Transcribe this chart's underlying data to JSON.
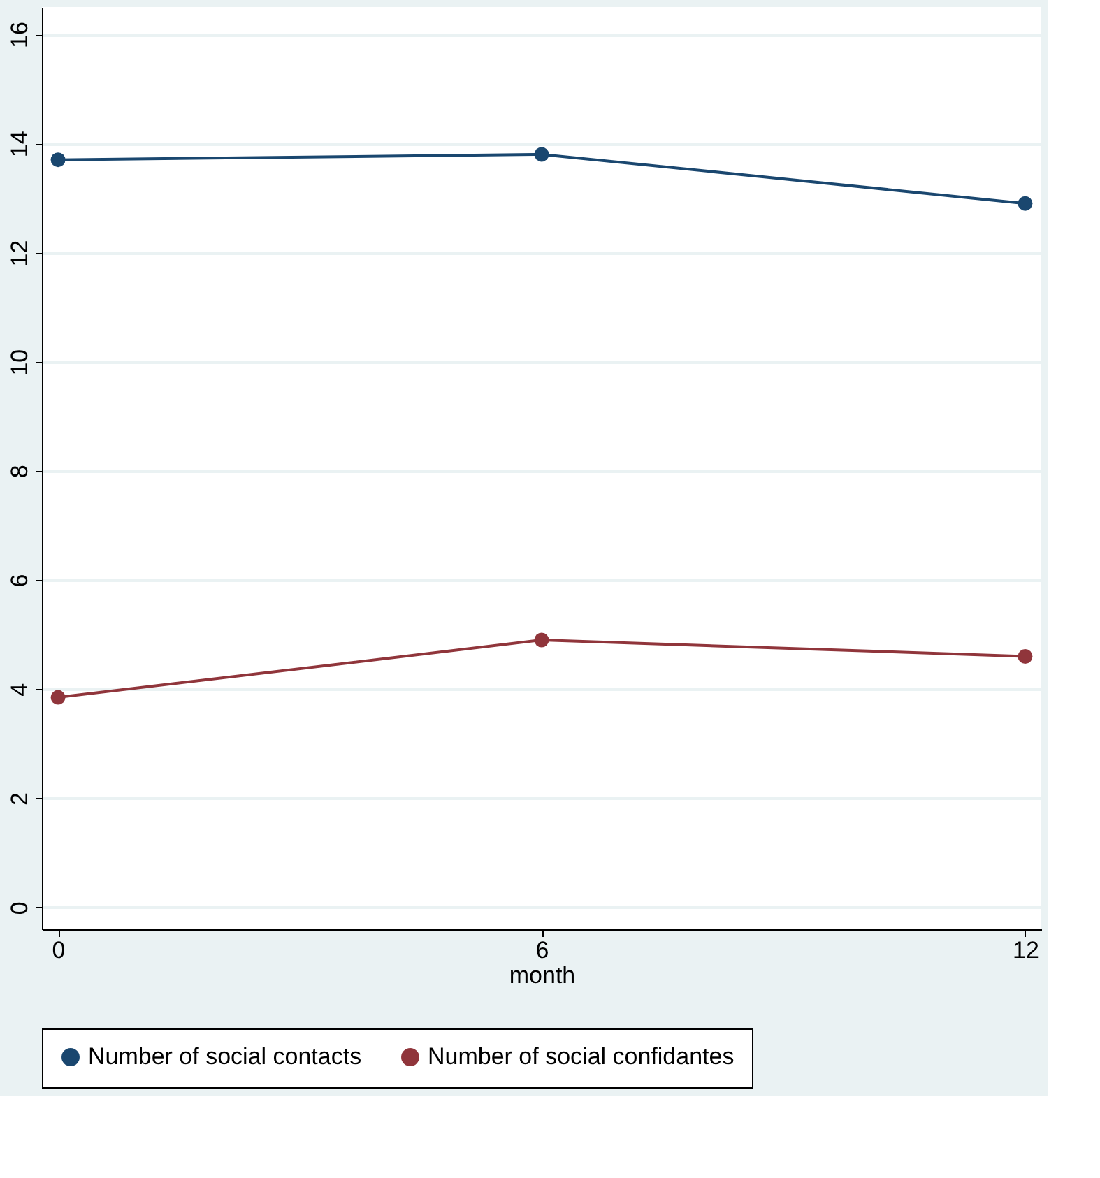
{
  "chart_data": {
    "type": "line",
    "xlabel": "month",
    "x": [
      0,
      6,
      12
    ],
    "series": [
      {
        "name": "Number of social contacts",
        "color": "#1a476f",
        "values": [
          13.7,
          13.8,
          12.9
        ]
      },
      {
        "name": "Number of social confidantes",
        "color": "#90353b",
        "values": [
          3.85,
          4.9,
          4.6
        ]
      }
    ],
    "xlim": [
      -0.2,
      12.2
    ],
    "xticks": [
      0,
      6,
      12
    ],
    "ylim": [
      -0.4,
      16.5
    ],
    "yticks": [
      0,
      2,
      4,
      6,
      8,
      10,
      12,
      14,
      16
    ],
    "grid": "y",
    "legend": "bottom",
    "marker": "circle",
    "line_style": "solid"
  }
}
